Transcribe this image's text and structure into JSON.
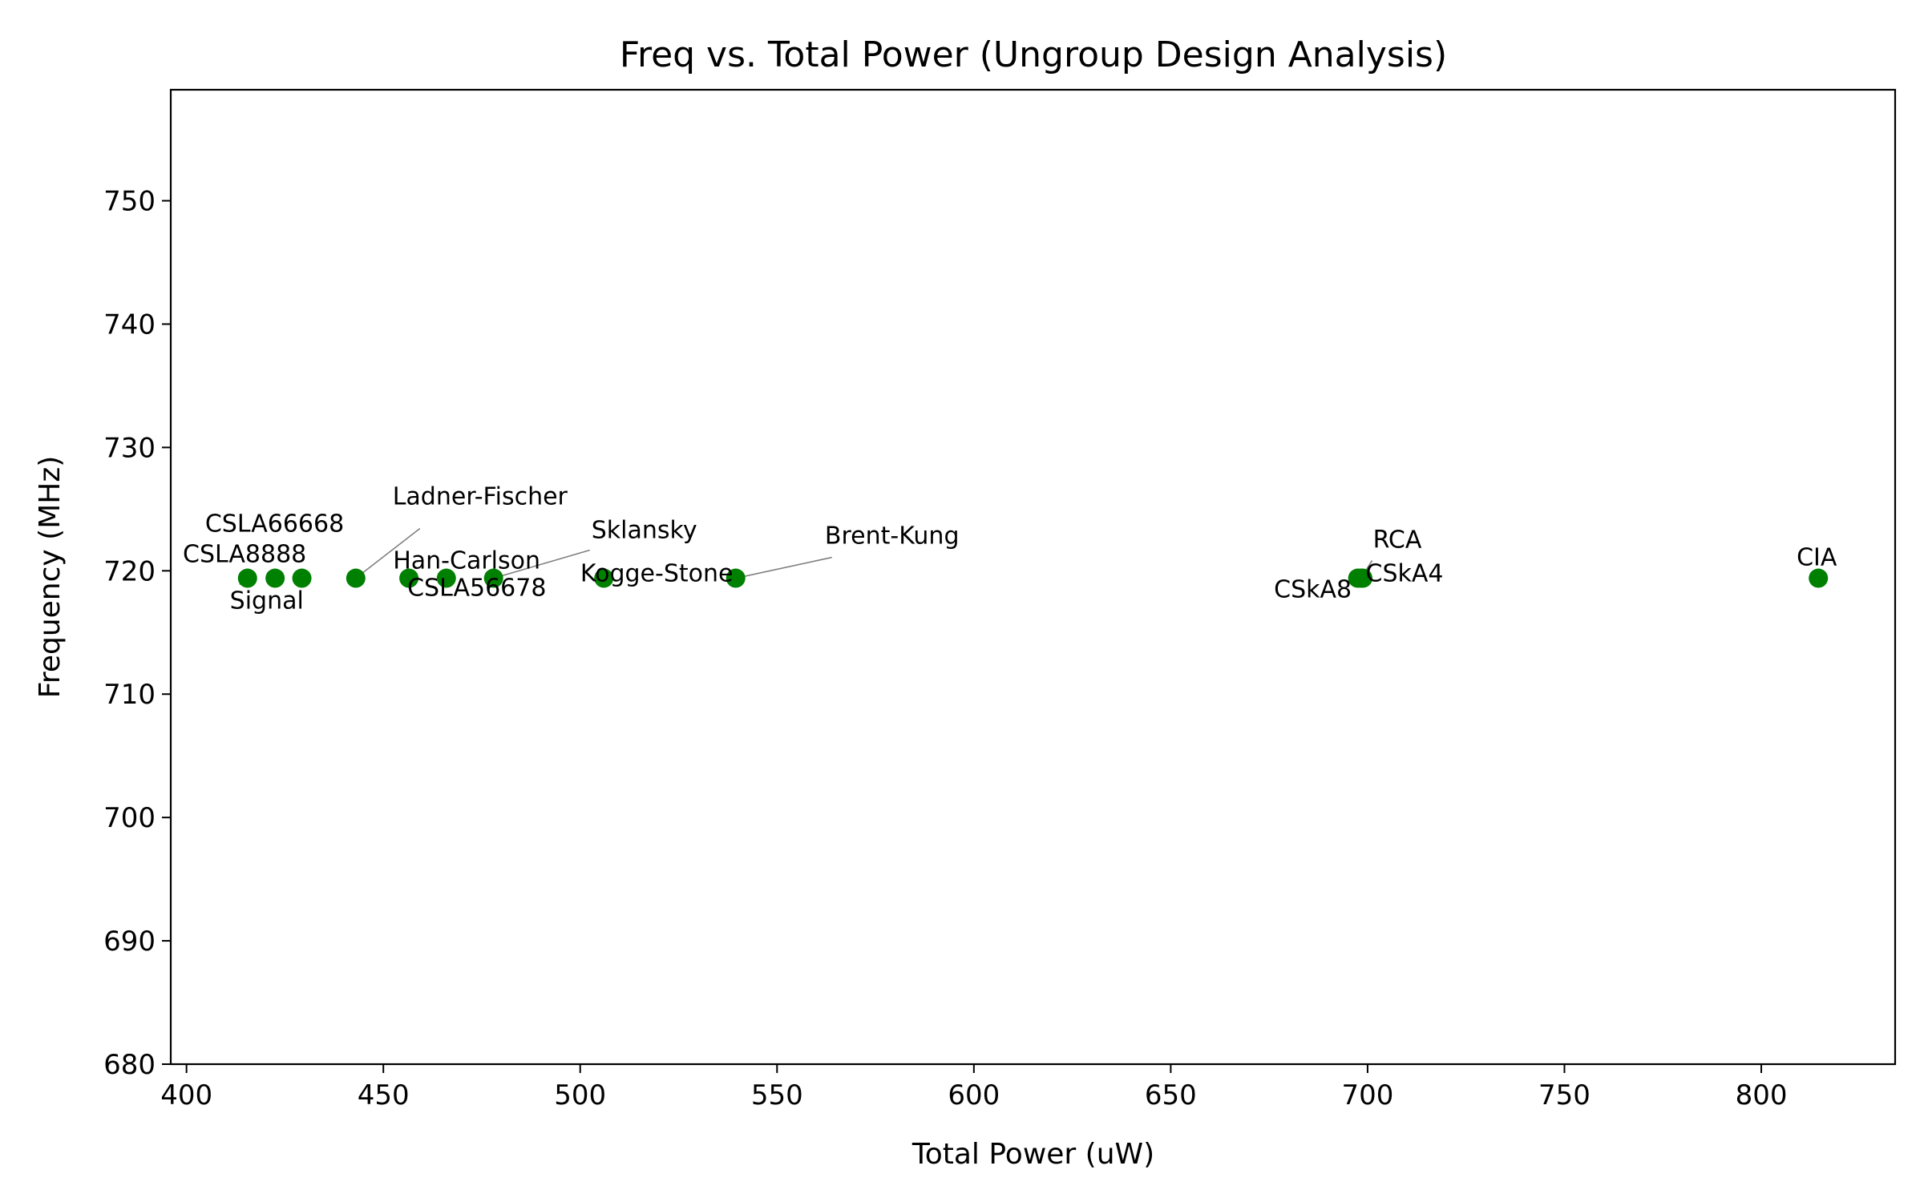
{
  "chart_data": {
    "type": "scatter",
    "title": "Freq vs. Total Power (Ungroup Design Analysis)",
    "xlabel": "Total Power (uW)",
    "ylabel": "Frequency (MHz)",
    "xlim": [
      396,
      834
    ],
    "ylim": [
      680,
      759
    ],
    "xticks": [
      400,
      450,
      500,
      550,
      600,
      650,
      700,
      750,
      800
    ],
    "yticks": [
      680,
      690,
      700,
      710,
      720,
      730,
      740,
      750
    ],
    "grid": false,
    "legend": "none",
    "marker_color": "#008000",
    "leader_color": "#808080",
    "points": [
      {
        "name": "Signal",
        "x": 415.5,
        "y": 719.4
      },
      {
        "name": "CSLA8888",
        "x": 422.5,
        "y": 719.4
      },
      {
        "name": "CSLA66668",
        "x": 429.3,
        "y": 719.4
      },
      {
        "name": "Ladner-Fischer",
        "x": 443.0,
        "y": 719.4
      },
      {
        "name": "Han-Carlson",
        "x": 456.5,
        "y": 719.4
      },
      {
        "name": "CSLA56678",
        "x": 466.0,
        "y": 719.4
      },
      {
        "name": "Sklansky",
        "x": 478.0,
        "y": 719.4
      },
      {
        "name": "Kogge-Stone",
        "x": 506.0,
        "y": 719.4
      },
      {
        "name": "Brent-Kung",
        "x": 539.5,
        "y": 719.4
      },
      {
        "name": "CSkA8",
        "x": 697.5,
        "y": 719.4
      },
      {
        "name": "RCA",
        "x": 698.3,
        "y": 719.4
      },
      {
        "name": "CSkA4",
        "x": 698.8,
        "y": 719.4
      },
      {
        "name": "CIA",
        "x": 814.5,
        "y": 719.4
      }
    ]
  }
}
